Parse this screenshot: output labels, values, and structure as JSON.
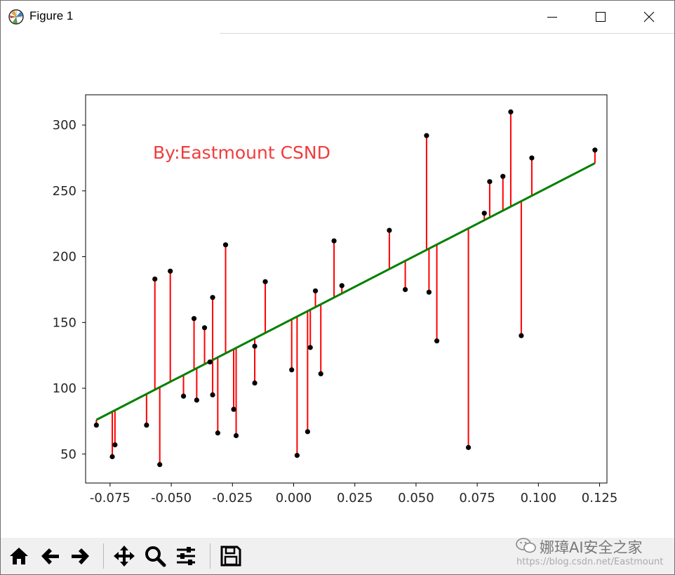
{
  "window": {
    "title": "Figure 1",
    "controls": {
      "minimize": "minimize",
      "maximize": "maximize",
      "close": "close"
    }
  },
  "toolbar": {
    "buttons": [
      {
        "name": "home-button",
        "icon": "home-icon"
      },
      {
        "name": "back-button",
        "icon": "arrow-left-icon"
      },
      {
        "name": "forward-button",
        "icon": "arrow-right-icon"
      },
      {
        "name": "pan-button",
        "icon": "move-icon"
      },
      {
        "name": "zoom-button",
        "icon": "magnifier-icon"
      },
      {
        "name": "configure-subplots-button",
        "icon": "sliders-icon"
      },
      {
        "name": "save-button",
        "icon": "floppy-disk-icon"
      }
    ]
  },
  "watermark": {
    "text": "娜璋AI安全之家",
    "url": "https://blog.csdn.net/Eastmount"
  },
  "chart_data": {
    "type": "scatter",
    "annotation": "By:Eastmount CSND",
    "annotation_color": "#f23b3b",
    "xlim": [
      -0.085,
      0.128
    ],
    "ylim": [
      28,
      323
    ],
    "xticks": [
      "-0.075",
      "-0.050",
      "-0.025",
      "0.000",
      "0.025",
      "0.050",
      "0.075",
      "0.100",
      "0.125"
    ],
    "xtick_values": [
      -0.075,
      -0.05,
      -0.025,
      0.0,
      0.025,
      0.05,
      0.075,
      0.1,
      0.125
    ],
    "yticks": [
      "50",
      "100",
      "150",
      "200",
      "250",
      "300"
    ],
    "ytick_values": [
      50,
      100,
      150,
      200,
      250,
      300
    ],
    "regression_line": {
      "color": "#008000",
      "x": [
        -0.0806,
        0.1231
      ],
      "y": [
        76,
        271
      ]
    },
    "residual_color": "#ff0000",
    "point_color": "#000000",
    "points": [
      {
        "x": -0.0806,
        "y": 72
      },
      {
        "x": -0.0741,
        "y": 48
      },
      {
        "x": -0.073,
        "y": 57
      },
      {
        "x": -0.0601,
        "y": 72
      },
      {
        "x": -0.0567,
        "y": 183
      },
      {
        "x": -0.0547,
        "y": 42
      },
      {
        "x": -0.0504,
        "y": 189
      },
      {
        "x": -0.045,
        "y": 94
      },
      {
        "x": -0.0407,
        "y": 153
      },
      {
        "x": -0.0396,
        "y": 91
      },
      {
        "x": -0.0364,
        "y": 146
      },
      {
        "x": -0.0342,
        "y": 120
      },
      {
        "x": -0.0331,
        "y": 169
      },
      {
        "x": -0.0331,
        "y": 95
      },
      {
        "x": -0.031,
        "y": 66
      },
      {
        "x": -0.0278,
        "y": 209
      },
      {
        "x": -0.0245,
        "y": 84
      },
      {
        "x": -0.0235,
        "y": 64
      },
      {
        "x": -0.0159,
        "y": 104
      },
      {
        "x": -0.0159,
        "y": 132
      },
      {
        "x": -0.0116,
        "y": 181
      },
      {
        "x": -0.0008,
        "y": 114
      },
      {
        "x": 0.0014,
        "y": 49
      },
      {
        "x": 0.0057,
        "y": 67
      },
      {
        "x": 0.0068,
        "y": 131
      },
      {
        "x": 0.0089,
        "y": 174
      },
      {
        "x": 0.0111,
        "y": 111
      },
      {
        "x": 0.0165,
        "y": 212
      },
      {
        "x": 0.0197,
        "y": 178
      },
      {
        "x": 0.0391,
        "y": 220
      },
      {
        "x": 0.0456,
        "y": 175
      },
      {
        "x": 0.0543,
        "y": 292
      },
      {
        "x": 0.0553,
        "y": 173
      },
      {
        "x": 0.0585,
        "y": 136
      },
      {
        "x": 0.0714,
        "y": 55
      },
      {
        "x": 0.0779,
        "y": 233
      },
      {
        "x": 0.0801,
        "y": 257
      },
      {
        "x": 0.0855,
        "y": 261
      },
      {
        "x": 0.0887,
        "y": 310
      },
      {
        "x": 0.093,
        "y": 140
      },
      {
        "x": 0.0973,
        "y": 275
      },
      {
        "x": 0.1231,
        "y": 281
      }
    ]
  }
}
